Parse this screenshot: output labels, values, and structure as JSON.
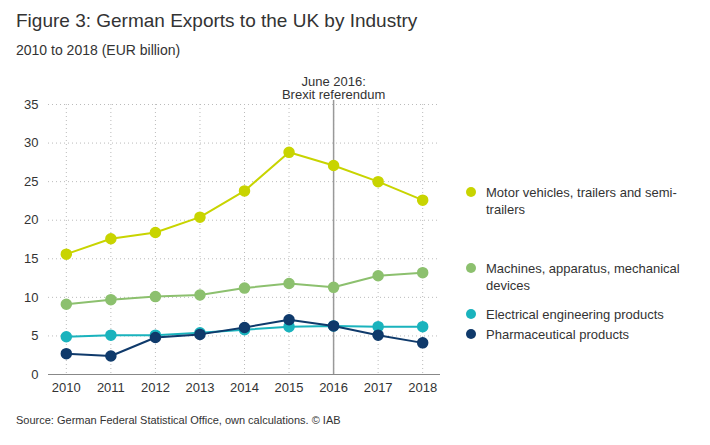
{
  "chart_data": {
    "type": "line",
    "title": "Figure 3: German Exports to the UK by Industry",
    "subtitle": "2010 to 2018 (EUR billion)",
    "source": "Source: German Federal Statistical Office, own calculations. © IAB",
    "x": [
      2010,
      2011,
      2012,
      2013,
      2014,
      2015,
      2016,
      2017,
      2018
    ],
    "series": [
      {
        "name": "Motor vehicles, trailers and semi-trailers",
        "color": "#c8d400",
        "values": [
          15.6,
          17.6,
          18.4,
          20.4,
          23.8,
          28.8,
          27.1,
          25.0,
          22.6
        ]
      },
      {
        "name": "Machines, apparatus, mechanical devices",
        "color": "#8cc06e",
        "values": [
          9.1,
          9.7,
          10.1,
          10.3,
          11.2,
          11.8,
          11.3,
          12.8,
          13.2
        ]
      },
      {
        "name": "Electrical engineering products",
        "color": "#1ab3bd",
        "values": [
          4.9,
          5.1,
          5.1,
          5.4,
          5.8,
          6.2,
          6.3,
          6.2,
          6.2
        ]
      },
      {
        "name": "Pharmaceutical products",
        "color": "#0f3a6b",
        "values": [
          2.7,
          2.4,
          4.8,
          5.2,
          6.1,
          7.1,
          6.3,
          5.1,
          4.1
        ]
      }
    ],
    "xlim": [
      2009.6,
      2018.4
    ],
    "xticks": [
      2010,
      2011,
      2012,
      2013,
      2014,
      2015,
      2016,
      2017,
      2018
    ],
    "ylim": [
      0,
      35
    ],
    "yticks": [
      0,
      5,
      10,
      15,
      20,
      25,
      30,
      35
    ],
    "grid": true,
    "legend": "right",
    "marker": "circle",
    "annotations": [
      {
        "x": 2016,
        "text": "June 2016:\nBrexit referendum"
      }
    ]
  }
}
